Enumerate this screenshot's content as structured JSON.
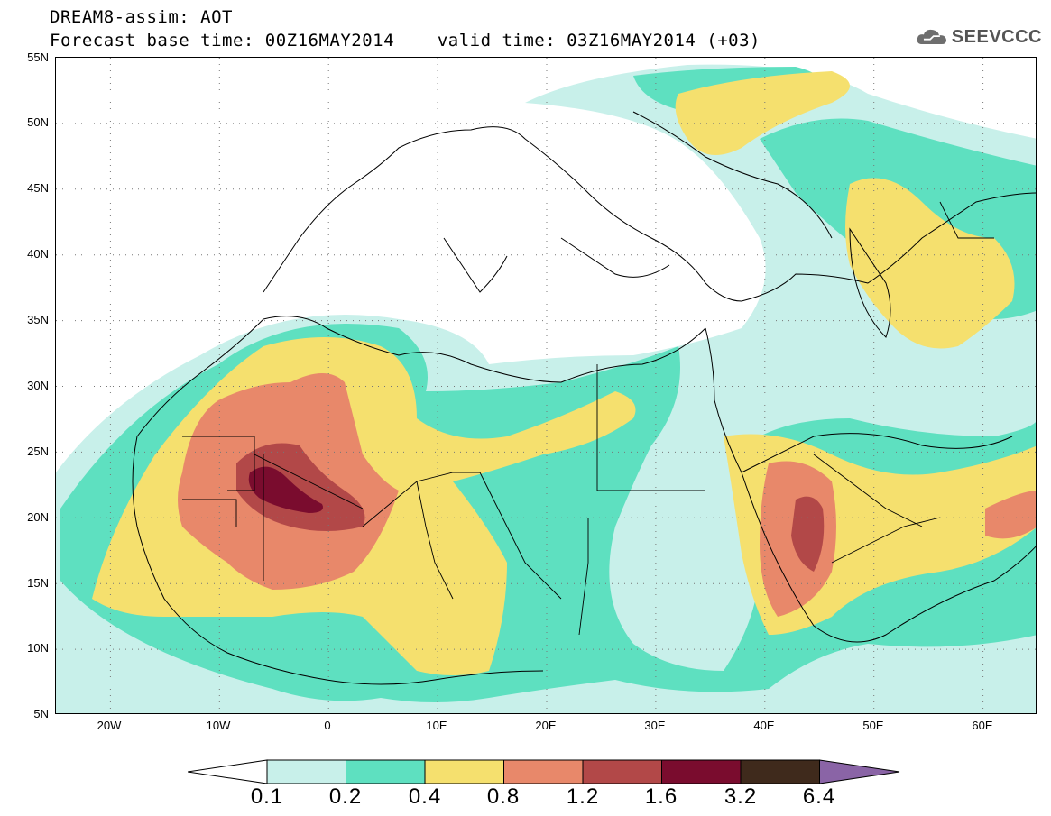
{
  "header": {
    "title_line1": "DREAM8-assim: AOT",
    "base_label": "Forecast base time: 00Z16MAY2014",
    "valid_label": "valid time: 03Z16MAY2014 (+03)"
  },
  "logo": {
    "text": "SEEVCCC",
    "icon": "cloud-icon"
  },
  "map": {
    "variable": "Aerosol Optical Thickness (AOT)",
    "lat_labels": [
      "55N",
      "50N",
      "45N",
      "40N",
      "35N",
      "30N",
      "25N",
      "20N",
      "15N",
      "10N",
      "5N"
    ],
    "lon_labels": [
      "20W",
      "10W",
      "0",
      "10E",
      "20E",
      "30E",
      "40E",
      "50E",
      "60E"
    ],
    "lat_range": [
      5,
      55
    ],
    "lon_range": [
      -25,
      65
    ],
    "grid": "dotted"
  },
  "colorbar": {
    "labels": [
      "0.1",
      "0.2",
      "0.4",
      "0.8",
      "1.2",
      "1.6",
      "3.2",
      "6.4"
    ],
    "colors": [
      "#ffffff",
      "#c8f0ea",
      "#5ee0c0",
      "#f5e06e",
      "#e8886a",
      "#b24848",
      "#7a0c2e",
      "#3f2a1c",
      "#8a64a6"
    ]
  }
}
